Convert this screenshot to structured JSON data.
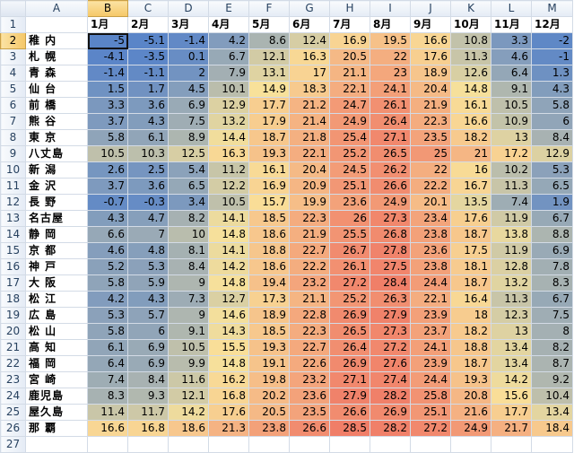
{
  "columns": [
    "",
    "A",
    "B",
    "C",
    "D",
    "E",
    "F",
    "G",
    "H",
    "I",
    "J",
    "K",
    "L",
    "M"
  ],
  "row_numbers": [
    1,
    2,
    3,
    4,
    5,
    6,
    7,
    8,
    9,
    10,
    11,
    12,
    13,
    14,
    15,
    16,
    17,
    18,
    19,
    20,
    21,
    22,
    23,
    24,
    25,
    26,
    27
  ],
  "selected_column": "B",
  "selected_row": 2,
  "months": [
    "1月",
    "2月",
    "3月",
    "4月",
    "5月",
    "6月",
    "7月",
    "8月",
    "9月",
    "10月",
    "11月",
    "12月"
  ],
  "color_scale": {
    "min": -5.1,
    "mid": 15,
    "max": 28.5,
    "low_color": "#5a85c8",
    "mid_color": "#f9e29a",
    "high_color": "#f07e68"
  },
  "rows": [
    {
      "city": "稚 内",
      "values": [
        -5,
        -5.1,
        -1.4,
        4.2,
        8.6,
        12.4,
        16.9,
        19.5,
        16.6,
        10.8,
        3.3,
        -2
      ]
    },
    {
      "city": "札 幌",
      "values": [
        -4.1,
        -3.5,
        0.1,
        6.7,
        12.1,
        16.3,
        20.5,
        22,
        17.6,
        11.3,
        4.6,
        -1
      ]
    },
    {
      "city": "青 森",
      "values": [
        -1.4,
        -1.1,
        2,
        7.9,
        13.1,
        17,
        21.1,
        23,
        18.9,
        12.6,
        6.4,
        1.3
      ]
    },
    {
      "city": "仙 台",
      "values": [
        1.5,
        1.7,
        4.5,
        10.1,
        14.9,
        18.3,
        22.1,
        24.1,
        20.4,
        14.8,
        9.1,
        4.3
      ]
    },
    {
      "city": "前 橋",
      "values": [
        3.3,
        3.6,
        6.9,
        12.9,
        17.7,
        21.2,
        24.7,
        26.1,
        21.9,
        16.1,
        10.5,
        5.8
      ]
    },
    {
      "city": "熊 谷",
      "values": [
        3.7,
        4.3,
        7.5,
        13.2,
        17.9,
        21.4,
        24.9,
        26.4,
        22.3,
        16.6,
        10.9,
        6
      ]
    },
    {
      "city": "東 京",
      "values": [
        5.8,
        6.1,
        8.9,
        14.4,
        18.7,
        21.8,
        25.4,
        27.1,
        23.5,
        18.2,
        13,
        8.4
      ]
    },
    {
      "city": "八丈島",
      "values": [
        10.5,
        10.3,
        12.5,
        16.3,
        19.3,
        22.1,
        25.2,
        26.5,
        25,
        21,
        17.2,
        12.9
      ]
    },
    {
      "city": "新 潟",
      "values": [
        2.6,
        2.5,
        5.4,
        11.2,
        16.1,
        20.4,
        24.5,
        26.2,
        22,
        16,
        10.2,
        5.3
      ]
    },
    {
      "city": "金 沢",
      "values": [
        3.7,
        3.6,
        6.5,
        12.2,
        16.9,
        20.9,
        25.1,
        26.6,
        22.2,
        16.7,
        11.3,
        6.5
      ]
    },
    {
      "city": "長 野",
      "values": [
        -0.7,
        -0.3,
        3.4,
        10.5,
        15.7,
        19.9,
        23.6,
        24.9,
        20.1,
        13.5,
        7.4,
        1.9
      ]
    },
    {
      "city": "名古屋",
      "values": [
        4.3,
        4.7,
        8.2,
        14.1,
        18.5,
        22.3,
        26,
        27.3,
        23.4,
        17.6,
        11.9,
        6.7
      ]
    },
    {
      "city": "静 岡",
      "values": [
        6.6,
        7,
        10,
        14.8,
        18.6,
        21.9,
        25.5,
        26.8,
        23.8,
        18.7,
        13.8,
        8.8
      ]
    },
    {
      "city": "京 都",
      "values": [
        4.6,
        4.8,
        8.1,
        14.1,
        18.8,
        22.7,
        26.7,
        27.8,
        23.6,
        17.5,
        11.9,
        6.9
      ]
    },
    {
      "city": "神 戸",
      "values": [
        5.2,
        5.3,
        8.4,
        14.2,
        18.6,
        22.2,
        26.1,
        27.5,
        23.8,
        18.1,
        12.8,
        7.8
      ]
    },
    {
      "city": "大 阪",
      "values": [
        5.8,
        5.9,
        9,
        14.8,
        19.4,
        23.2,
        27.2,
        28.4,
        24.4,
        18.7,
        13.2,
        8.3
      ]
    },
    {
      "city": "松 江",
      "values": [
        4.2,
        4.3,
        7.3,
        12.7,
        17.3,
        21.1,
        25.2,
        26.3,
        22.1,
        16.4,
        11.3,
        6.7
      ]
    },
    {
      "city": "広 島",
      "values": [
        5.3,
        5.7,
        9,
        14.6,
        18.9,
        22.8,
        26.9,
        27.9,
        23.9,
        18,
        12.3,
        7.5
      ]
    },
    {
      "city": "松 山",
      "values": [
        5.8,
        6,
        9.1,
        14.3,
        18.5,
        22.3,
        26.5,
        27.3,
        23.7,
        18.2,
        13,
        8
      ]
    },
    {
      "city": "高 知",
      "values": [
        6.1,
        6.9,
        10.5,
        15.5,
        19.3,
        22.7,
        26.4,
        27.2,
        24.1,
        18.8,
        13.4,
        8.2
      ]
    },
    {
      "city": "福 岡",
      "values": [
        6.4,
        6.9,
        9.9,
        14.8,
        19.1,
        22.6,
        26.9,
        27.6,
        23.9,
        18.7,
        13.4,
        8.7
      ]
    },
    {
      "city": "宮 崎",
      "values": [
        7.4,
        8.4,
        11.6,
        16.2,
        19.8,
        23.2,
        27.1,
        27.4,
        24.4,
        19.3,
        14.2,
        9.2
      ]
    },
    {
      "city": "鹿児島",
      "values": [
        8.3,
        9.3,
        12.1,
        16.8,
        20.2,
        23.6,
        27.9,
        28.2,
        25.8,
        20.8,
        15.6,
        10.4
      ]
    },
    {
      "city": "屋久島",
      "values": [
        11.4,
        11.7,
        14.2,
        17.6,
        20.5,
        23.5,
        26.6,
        26.9,
        25.1,
        21.6,
        17.7,
        13.4
      ]
    },
    {
      "city": "那 覇",
      "values": [
        16.6,
        16.8,
        18.6,
        21.3,
        23.8,
        26.6,
        28.5,
        28.2,
        27.2,
        24.9,
        21.7,
        18.4
      ]
    }
  ]
}
